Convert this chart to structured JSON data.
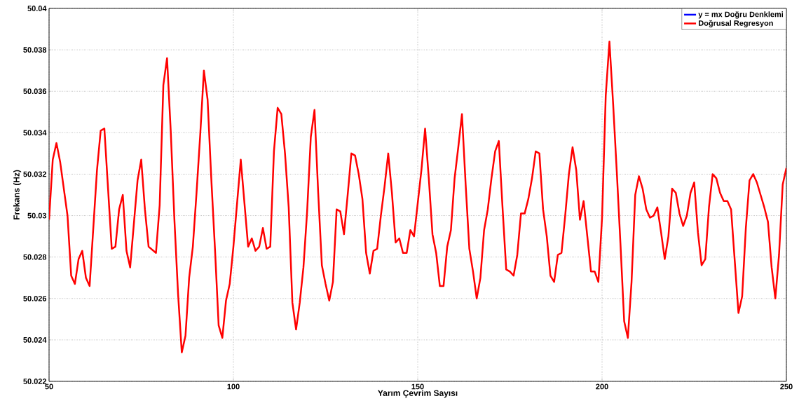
{
  "chart_data": {
    "type": "line",
    "xlabel": "Yarım Çevrim Sayısı",
    "ylabel": "Frekans (Hz)",
    "xlim": [
      50,
      250
    ],
    "ylim": [
      50.022,
      50.04
    ],
    "xticks": [
      50,
      100,
      150,
      200,
      250
    ],
    "yticks": [
      50.022,
      50.024,
      50.026,
      50.028,
      50.03,
      50.032,
      50.034,
      50.036,
      50.038,
      50.04
    ],
    "grid": true,
    "legend": "top right",
    "marker": "none",
    "line_style": "solid",
    "series": [
      {
        "name": "y = mx Doğru Denklemi",
        "color": "#0000ff"
      },
      {
        "name": "Doğrusal Regresyon",
        "color": "#ff0000",
        "x": [
          50,
          51,
          52,
          53,
          55,
          56,
          57,
          58,
          59,
          60,
          61,
          63,
          64,
          65,
          66,
          67,
          68,
          69,
          70,
          71,
          72,
          74,
          75,
          76,
          77,
          79,
          80,
          81,
          82,
          83,
          84,
          85,
          86,
          87,
          88,
          89,
          90,
          91,
          92,
          93,
          94,
          95,
          96,
          97,
          98,
          99,
          100,
          101,
          102,
          103,
          104,
          105,
          106,
          107,
          108,
          109,
          110,
          111,
          112,
          113,
          114,
          115,
          116,
          117,
          118,
          119,
          120,
          121,
          122,
          123,
          124,
          125,
          126,
          127,
          128,
          129,
          130,
          131,
          132,
          133,
          134,
          135,
          136,
          137,
          138,
          139,
          140,
          141,
          142,
          143,
          144,
          145,
          146,
          147,
          148,
          149,
          150,
          151,
          152,
          153,
          154,
          155,
          156,
          157,
          158,
          159,
          160,
          161,
          162,
          163,
          164,
          165,
          166,
          167,
          168,
          169,
          170,
          171,
          172,
          173,
          174,
          175,
          176,
          177,
          178,
          179,
          180,
          181,
          182,
          183,
          184,
          185,
          186,
          187,
          188,
          189,
          190,
          191,
          192,
          193,
          194,
          195,
          196,
          197,
          198,
          199,
          200,
          201,
          202,
          203,
          204,
          205,
          206,
          207,
          208,
          209,
          210,
          211,
          212,
          213,
          214,
          215,
          216,
          217,
          218,
          219,
          220,
          221,
          222,
          223,
          224,
          225,
          226,
          227,
          228,
          229,
          230,
          231,
          232,
          233,
          234,
          235,
          236,
          237,
          238,
          239,
          240,
          241,
          242,
          243,
          244,
          245,
          246,
          247,
          248,
          249,
          250
        ],
        "values": [
          50.0298,
          50.0327,
          50.0335,
          50.0326,
          50.03,
          50.0271,
          50.0267,
          50.0279,
          50.0283,
          50.027,
          50.0266,
          50.0322,
          50.0341,
          50.0342,
          50.0313,
          50.0284,
          50.0285,
          50.0303,
          50.031,
          50.0283,
          50.0275,
          50.0317,
          50.0327,
          50.0303,
          50.0285,
          50.0282,
          50.0305,
          50.0363,
          50.0376,
          50.0341,
          50.0298,
          50.0262,
          50.0234,
          50.0242,
          50.027,
          50.0285,
          50.0311,
          50.0339,
          50.037,
          50.0356,
          50.0318,
          50.0284,
          50.0247,
          50.0241,
          50.0259,
          50.0267,
          50.0285,
          50.0306,
          50.0327,
          50.0306,
          50.0285,
          50.0289,
          50.0283,
          50.0285,
          50.0294,
          50.0284,
          50.0285,
          50.0331,
          50.0352,
          50.0349,
          50.033,
          50.0304,
          50.0258,
          50.0245,
          50.0258,
          50.0275,
          50.0302,
          50.0338,
          50.0351,
          50.0311,
          50.0276,
          50.0267,
          50.0259,
          50.0268,
          50.0303,
          50.0302,
          50.0291,
          50.031,
          50.033,
          50.0329,
          50.032,
          50.0308,
          50.0282,
          50.0272,
          50.0283,
          50.0284,
          50.03,
          50.0314,
          50.033,
          50.0311,
          50.0287,
          50.0289,
          50.0282,
          50.0282,
          50.0293,
          50.029,
          50.0306,
          50.0322,
          50.0342,
          50.0318,
          50.0291,
          50.0282,
          50.0266,
          50.0266,
          50.0285,
          50.0293,
          50.0318,
          50.0333,
          50.0349,
          50.0315,
          50.0284,
          50.0273,
          50.026,
          50.027,
          50.0293,
          50.0303,
          50.0318,
          50.0331,
          50.0336,
          50.0304,
          50.0274,
          50.0273,
          50.0271,
          50.0281,
          50.0301,
          50.0301,
          50.0308,
          50.0318,
          50.0331,
          50.033,
          50.0303,
          50.029,
          50.0271,
          50.0268,
          50.0281,
          50.0282,
          50.03,
          50.032,
          50.0333,
          50.0322,
          50.0298,
          50.0307,
          50.029,
          50.0273,
          50.0273,
          50.0268,
          50.0299,
          50.0358,
          50.0384,
          50.0354,
          50.0321,
          50.0286,
          50.0249,
          50.0241,
          50.0268,
          50.031,
          50.0319,
          50.0313,
          50.0303,
          50.0299,
          50.03,
          50.0304,
          50.0292,
          50.0279,
          50.029,
          50.0313,
          50.0311,
          50.0301,
          50.0295,
          50.03,
          50.0311,
          50.0316,
          50.0292,
          50.0276,
          50.0279,
          50.0304,
          50.032,
          50.0318,
          50.0311,
          50.0307,
          50.0307,
          50.0303,
          50.0278,
          50.0253,
          50.0261,
          50.0294,
          50.0317,
          50.032,
          50.0316,
          50.031,
          50.0304,
          50.0297,
          50.0275,
          50.026,
          50.0281,
          50.0315,
          50.0323
        ]
      }
    ]
  }
}
